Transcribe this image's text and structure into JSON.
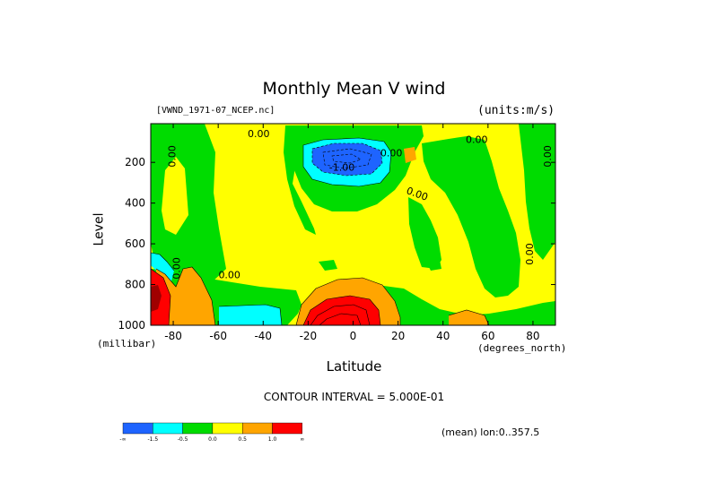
{
  "chart_data": {
    "type": "heatmap",
    "title": "Monthly Mean V wind",
    "dataset_label": "[VWND_1971-07_NCEP.nc]",
    "units_label": "(units:m/s)",
    "xlabel": "Latitude",
    "x_units": "(degrees_north)",
    "ylabel": "Level",
    "y_units": "(millibar)",
    "xlim": [
      -90,
      90
    ],
    "ylim": [
      1000,
      10
    ],
    "x_ticks": [
      -80,
      -60,
      -40,
      -20,
      0,
      20,
      40,
      60,
      80
    ],
    "y_ticks": [
      200,
      400,
      600,
      800,
      1000
    ],
    "contour_interval_text": "CONTOUR INTERVAL = 5.000E-01",
    "contour_labels": [
      {
        "text": "0.00",
        "x": -79,
        "y": 170
      },
      {
        "text": "0.00",
        "x": -42,
        "y": 75
      },
      {
        "text": "-1.00",
        "x": -5,
        "y": 240
      },
      {
        "text": "0.00",
        "x": 17,
        "y": 170
      },
      {
        "text": "0.00",
        "x": 28,
        "y": 370
      },
      {
        "text": "0.00",
        "x": 55,
        "y": 105
      },
      {
        "text": "0.00",
        "x": 88,
        "y": 170
      },
      {
        "text": "0.00",
        "x": 80,
        "y": 650
      },
      {
        "text": "0.00",
        "x": -77,
        "y": 720
      },
      {
        "text": "0.00",
        "x": -55,
        "y": 770
      }
    ],
    "regions": [
      {
        "level": "0.0 to 0.5",
        "lat": [
          -70,
          -55
        ],
        "lev": [
          130,
          820
        ]
      },
      {
        "level": "-1.5 to -0.5",
        "lat": [
          -20,
          14
        ],
        "lev": [
          140,
          310
        ]
      },
      {
        "level": "-inf to -1.5",
        "lat": [
          -17,
          10
        ],
        "lev": [
          150,
          230
        ]
      },
      {
        "level": "1.0 to inf",
        "lat": [
          -22,
          8
        ],
        "lev": [
          890,
          1000
        ]
      },
      {
        "level": "0.5 to 1.0",
        "lat": [
          -25,
          15
        ],
        "lev": [
          790,
          1000
        ]
      },
      {
        "level": "-1.5 to -0.5",
        "lat": [
          -58,
          -38
        ],
        "lev": [
          920,
          1000
        ]
      },
      {
        "level": "1.0 to inf",
        "lat": [
          -90,
          -84
        ],
        "lev": [
          770,
          1000
        ]
      }
    ],
    "colorbar": {
      "colors": [
        "#1e64ff",
        "#00ffff",
        "#00dc00",
        "#ffff00",
        "#ffa500",
        "#ff0000"
      ],
      "labels": [
        "-∞",
        "-1.5",
        "-0.5",
        "0.0",
        "0.5",
        "1.0",
        "∞"
      ]
    }
  },
  "footer": {
    "mean_label": "(mean) lon:0..357.5"
  }
}
